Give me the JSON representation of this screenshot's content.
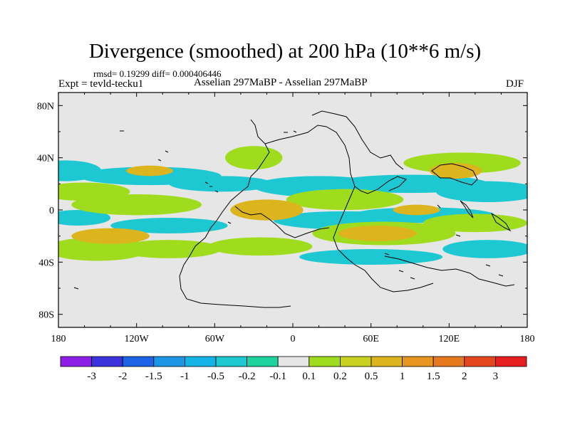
{
  "chart_data": {
    "type": "contour-map",
    "title": "Divergence (smoothed) at 200 hPa (10**6 m/s)",
    "stats_line": "rmsd= 0.19299 diff= 0.000406446",
    "left_label": "Expt = tevld-tecku1",
    "center_label": "Asselian 297MaBP - Asselian 297MaBP",
    "right_label": "DJF",
    "x_range": [
      -180,
      180
    ],
    "y_range": [
      -90,
      90
    ],
    "x_ticks": [
      {
        "value": -180,
        "label": "180"
      },
      {
        "value": -120,
        "label": "120W"
      },
      {
        "value": -60,
        "label": "60W"
      },
      {
        "value": 0,
        "label": "0"
      },
      {
        "value": 60,
        "label": "60E"
      },
      {
        "value": 120,
        "label": "120E"
      },
      {
        "value": 180,
        "label": "180"
      }
    ],
    "y_ticks": [
      {
        "value": 80,
        "label": "80N"
      },
      {
        "value": 40,
        "label": "40N"
      },
      {
        "value": 0,
        "label": "0"
      },
      {
        "value": -40,
        "label": "40S"
      },
      {
        "value": -80,
        "label": "80S"
      }
    ],
    "colorbar": {
      "colors": [
        "#8c1ee6",
        "#3c32dc",
        "#1e64e6",
        "#1e96e6",
        "#14b4e6",
        "#1ec8d2",
        "#1ed2a0",
        "#e6e6e6",
        "#a0dc1e",
        "#c8d21e",
        "#dcb41e",
        "#e6961e",
        "#e6781e",
        "#e6461e",
        "#e61e1e"
      ],
      "labels": [
        "-3",
        "-2",
        "-1.5",
        "-1",
        "-0.5",
        "-0.2",
        "-0.1",
        "0.1",
        "0.2",
        "0.5",
        "1",
        "1.5",
        "2",
        "3"
      ]
    },
    "field_regions": [
      {
        "level": "-0.2",
        "color": "#1ec8d2",
        "lon": -175,
        "lat": 30,
        "lon_w": 28,
        "lat_h": 8
      },
      {
        "level": "-0.2",
        "color": "#1ec8d2",
        "lon": -110,
        "lat": 26,
        "lon_w": 55,
        "lat_h": 7
      },
      {
        "level": "-0.2",
        "color": "#1ec8d2",
        "lon": -55,
        "lat": 20,
        "lon_w": 40,
        "lat_h": 6
      },
      {
        "level": "-0.2",
        "color": "#1ec8d2",
        "lon": 20,
        "lat": 18,
        "lon_w": 50,
        "lat_h": 8
      },
      {
        "level": "-0.2",
        "color": "#1ec8d2",
        "lon": 90,
        "lat": 20,
        "lon_w": 60,
        "lat_h": 7
      },
      {
        "level": "-0.2",
        "color": "#1ec8d2",
        "lon": 150,
        "lat": 14,
        "lon_w": 40,
        "lat_h": 8
      },
      {
        "level": "-0.2",
        "color": "#1ec8d2",
        "lon": 40,
        "lat": -8,
        "lon_w": 55,
        "lat_h": 7
      },
      {
        "level": "-0.2",
        "color": "#1ec8d2",
        "lon": 100,
        "lat": -4,
        "lon_w": 55,
        "lat_h": 6
      },
      {
        "level": "-0.2",
        "color": "#1ec8d2",
        "lon": 60,
        "lat": -36,
        "lon_w": 55,
        "lat_h": 6
      },
      {
        "level": "-0.2",
        "color": "#1ec8d2",
        "lon": 150,
        "lat": -30,
        "lon_w": 35,
        "lat_h": 7
      },
      {
        "level": "-0.2",
        "color": "#1ec8d2",
        "lon": -165,
        "lat": -6,
        "lon_w": 25,
        "lat_h": 6
      },
      {
        "level": "-0.2",
        "color": "#1ec8d2",
        "lon": -95,
        "lat": -12,
        "lon_w": 45,
        "lat_h": 6
      },
      {
        "level": "0.2",
        "color": "#a0dc1e",
        "lon": -160,
        "lat": 14,
        "lon_w": 35,
        "lat_h": 7
      },
      {
        "level": "0.2",
        "color": "#a0dc1e",
        "lon": -120,
        "lat": 4,
        "lon_w": 50,
        "lat_h": 8
      },
      {
        "level": "0.2",
        "color": "#a0dc1e",
        "lon": -150,
        "lat": -30,
        "lon_w": 40,
        "lat_h": 9
      },
      {
        "level": "0.2",
        "color": "#a0dc1e",
        "lon": -95,
        "lat": -30,
        "lon_w": 40,
        "lat_h": 7
      },
      {
        "level": "0.2",
        "color": "#a0dc1e",
        "lon": -30,
        "lat": 40,
        "lon_w": 22,
        "lat_h": 9
      },
      {
        "level": "0.2",
        "color": "#a0dc1e",
        "lon": 40,
        "lat": 8,
        "lon_w": 45,
        "lat_h": 8
      },
      {
        "level": "0.2",
        "color": "#a0dc1e",
        "lon": 130,
        "lat": 36,
        "lon_w": 45,
        "lat_h": 8
      },
      {
        "level": "0.2",
        "color": "#a0dc1e",
        "lon": 70,
        "lat": -18,
        "lon_w": 55,
        "lat_h": 9
      },
      {
        "level": "0.2",
        "color": "#a0dc1e",
        "lon": 140,
        "lat": -10,
        "lon_w": 40,
        "lat_h": 7
      },
      {
        "level": "0.2",
        "color": "#a0dc1e",
        "lon": -25,
        "lat": -28,
        "lon_w": 40,
        "lat_h": 7
      },
      {
        "level": "0.5",
        "color": "#dcb41e",
        "lon": -140,
        "lat": -20,
        "lon_w": 30,
        "lat_h": 6
      },
      {
        "level": "0.5",
        "color": "#dcb41e",
        "lon": -20,
        "lat": 0,
        "lon_w": 28,
        "lat_h": 8
      },
      {
        "level": "0.5",
        "color": "#dcb41e",
        "lon": 65,
        "lat": -18,
        "lon_w": 30,
        "lat_h": 6
      },
      {
        "level": "0.5",
        "color": "#dcb41e",
        "lon": 125,
        "lat": 30,
        "lon_w": 20,
        "lat_h": 6
      },
      {
        "level": "0.5",
        "color": "#dcb41e",
        "lon": -110,
        "lat": 30,
        "lon_w": 18,
        "lat_h": 4
      },
      {
        "level": "0.5",
        "color": "#dcb41e",
        "lon": 95,
        "lat": 0,
        "lon_w": 18,
        "lat_h": 4
      }
    ]
  }
}
